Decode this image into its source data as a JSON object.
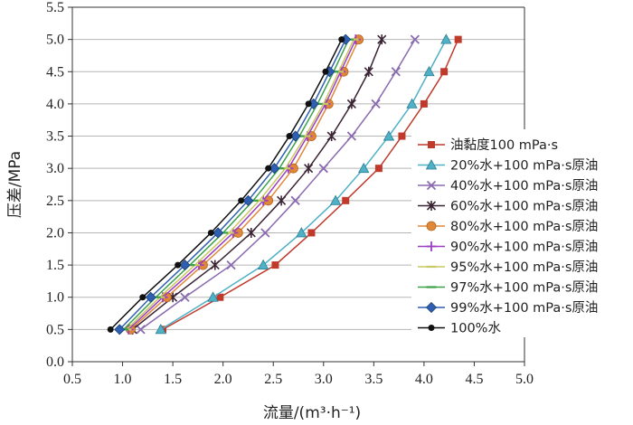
{
  "chart_data": {
    "type": "line",
    "title": "",
    "xlabel": "流量/(m³·h⁻¹)",
    "ylabel": "压差/MPa",
    "xlim": [
      0.5,
      5.0
    ],
    "ylim": [
      0.0,
      5.5
    ],
    "xticks": [
      "0.5",
      "1.0",
      "1.5",
      "2.0",
      "2.5",
      "3.0",
      "3.5",
      "4.0",
      "4.5",
      "5.0"
    ],
    "yticks": [
      "0.0",
      "0.5",
      "1.0",
      "1.5",
      "2.0",
      "2.5",
      "3.0",
      "3.5",
      "4.0",
      "4.5",
      "5.0",
      "5.5"
    ],
    "grid": "horizontal",
    "legend_position": "right",
    "y_points": [
      0.5,
      1.0,
      1.5,
      2.0,
      2.5,
      3.0,
      3.5,
      4.0,
      4.5,
      5.0
    ],
    "series": [
      {
        "name": "油黏度100 mPa·s",
        "color": "#c0392b",
        "marker": "square",
        "x": [
          1.4,
          1.97,
          2.52,
          2.88,
          3.22,
          3.55,
          3.78,
          4.0,
          4.2,
          4.34
        ]
      },
      {
        "name": "20%水+100 mPa·s原油",
        "color": "#4fb0c6",
        "marker": "triangle",
        "x": [
          1.38,
          1.9,
          2.4,
          2.78,
          3.12,
          3.4,
          3.65,
          3.88,
          4.05,
          4.22
        ]
      },
      {
        "name": "40%水+100 mPa·s原油",
        "color": "#8a6ab0",
        "marker": "x",
        "x": [
          1.18,
          1.62,
          2.08,
          2.42,
          2.72,
          3.0,
          3.28,
          3.52,
          3.72,
          3.91
        ]
      },
      {
        "name": "60%水+100 mPa·s原油",
        "color": "#3a2434",
        "marker": "star",
        "x": [
          1.1,
          1.5,
          1.92,
          2.28,
          2.58,
          2.85,
          3.08,
          3.28,
          3.45,
          3.58
        ]
      },
      {
        "name": "80%水+100 mPa·s原油",
        "color": "#e0883a",
        "marker": "circle",
        "x": [
          1.08,
          1.44,
          1.8,
          2.15,
          2.45,
          2.7,
          2.88,
          3.05,
          3.2,
          3.35
        ]
      },
      {
        "name": "90%水+100 mPa·s原油",
        "color": "#9b3fc0",
        "marker": "plus",
        "x": [
          1.06,
          1.4,
          1.76,
          2.1,
          2.4,
          2.65,
          2.84,
          3.02,
          3.17,
          3.32
        ]
      },
      {
        "name": "95%水+100 mPa·s原油",
        "color": "#c8c860",
        "marker": "dash",
        "x": [
          1.04,
          1.37,
          1.72,
          2.06,
          2.36,
          2.62,
          2.82,
          3.0,
          3.15,
          3.3
        ]
      },
      {
        "name": "97%水+100 mPa·s原油",
        "color": "#3aa04a",
        "marker": "dash",
        "x": [
          1.01,
          1.33,
          1.67,
          2.0,
          2.3,
          2.56,
          2.76,
          2.94,
          3.1,
          3.25
        ]
      },
      {
        "name": "99%水+100 mPa·s原油",
        "color": "#2e5fb0",
        "marker": "diamond",
        "x": [
          0.97,
          1.28,
          1.62,
          1.95,
          2.25,
          2.51,
          2.72,
          2.9,
          3.06,
          3.22
        ]
      },
      {
        "name": "100%水",
        "color": "#111111",
        "marker": "dot",
        "x": [
          0.88,
          1.2,
          1.55,
          1.88,
          2.18,
          2.45,
          2.66,
          2.85,
          3.02,
          3.18
        ]
      }
    ]
  }
}
